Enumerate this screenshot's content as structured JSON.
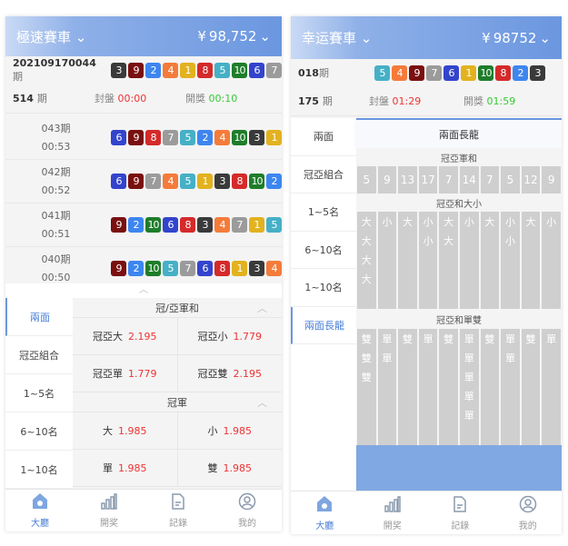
{
  "ball_colors": {
    "1": "#e2b21f",
    "2": "#3d86f0",
    "3": "#3a3a3a",
    "4": "#f57b3a",
    "5": "#45b0c6",
    "6": "#3344cc",
    "7": "#9b9b9b",
    "8": "#d42a2a",
    "9": "#7a1010",
    "10": "#1e7d2a"
  },
  "left": {
    "header": {
      "title": "極速賽車",
      "balance": "98,752"
    },
    "current": {
      "period": "202109170044",
      "period_suffix": "期",
      "balls": [
        3,
        9,
        2,
        4,
        1,
        8,
        5,
        10,
        6,
        7
      ]
    },
    "next": {
      "period": "514",
      "period_suffix": "期",
      "close_label": "封盤",
      "close_time": "00:00",
      "open_label": "開獎",
      "open_time": "00:10"
    },
    "history": [
      {
        "period": "043期",
        "time": "00:53",
        "balls": [
          6,
          9,
          8,
          7,
          5,
          2,
          4,
          10,
          3,
          1
        ]
      },
      {
        "period": "042期",
        "time": "00:52",
        "balls": [
          6,
          9,
          7,
          4,
          5,
          1,
          3,
          8,
          10,
          2
        ]
      },
      {
        "period": "041期",
        "time": "00:51",
        "balls": [
          9,
          2,
          10,
          6,
          8,
          3,
          4,
          7,
          1,
          5
        ]
      },
      {
        "period": "040期",
        "time": "00:50",
        "balls": [
          9,
          2,
          10,
          5,
          7,
          6,
          8,
          1,
          3,
          4
        ]
      }
    ],
    "sidebar": [
      "兩面",
      "冠亞組合",
      "1~5名",
      "6~10名",
      "1~10名"
    ],
    "sections": [
      {
        "title": "冠/亞軍和",
        "rows": [
          [
            {
              "name": "冠亞大",
              "odds": "2.195"
            },
            {
              "name": "冠亞小",
              "odds": "1.779"
            }
          ],
          [
            {
              "name": "冠亞單",
              "odds": "1.779"
            },
            {
              "name": "冠亞雙",
              "odds": "2.195"
            }
          ]
        ]
      },
      {
        "title": "冠軍",
        "rows": [
          [
            {
              "name": "大",
              "odds": "1.985"
            },
            {
              "name": "小",
              "odds": "1.985"
            }
          ],
          [
            {
              "name": "單",
              "odds": "1.985"
            },
            {
              "name": "雙",
              "odds": "1.985"
            }
          ]
        ]
      }
    ]
  },
  "right": {
    "header": {
      "title": "幸运賽車",
      "balance": "98752"
    },
    "current": {
      "period": "018",
      "period_suffix": "期",
      "balls": [
        5,
        4,
        9,
        7,
        6,
        1,
        10,
        8,
        2,
        3
      ]
    },
    "next": {
      "period": "175",
      "period_suffix": "期",
      "close_label": "封盤",
      "close_time": "01:29",
      "open_label": "開獎",
      "open_time": "01:59"
    },
    "sidebar": [
      "兩面",
      "冠亞組合",
      "1~5名",
      "6~10名",
      "1~10名",
      "兩面長龍"
    ],
    "tab_title": "兩面長龍",
    "sum_label": "冠亞軍和",
    "sums": [
      "5",
      "9",
      "13",
      "17",
      "7",
      "14",
      "7",
      "5",
      "12",
      "9"
    ],
    "bigsmall_label": "冠亞和大小",
    "bigsmall": [
      [
        "大",
        "大",
        "大",
        "大"
      ],
      [
        "小"
      ],
      [
        "大"
      ],
      [
        "小",
        "小"
      ],
      [
        "大",
        "大"
      ],
      [
        "小"
      ],
      [
        "大"
      ],
      [
        "小",
        "小"
      ],
      [
        "大"
      ],
      [
        "小"
      ]
    ],
    "oddeven_label": "冠亞和單雙",
    "oddeven": [
      [
        "雙",
        "雙",
        "雙"
      ],
      [
        "單",
        "單"
      ],
      [
        "雙"
      ],
      [
        "單"
      ],
      [
        "雙"
      ],
      [
        "單",
        "單",
        "單",
        "單",
        "單"
      ],
      [
        "雙"
      ],
      [
        "單",
        "單"
      ],
      [
        "雙"
      ],
      [
        "單"
      ]
    ]
  },
  "nav": [
    {
      "label": "大廳",
      "icon": "home-icon"
    },
    {
      "label": "開奖",
      "icon": "chart-bars-icon"
    },
    {
      "label": "記錄",
      "icon": "document-icon"
    },
    {
      "label": "我的",
      "icon": "user-icon"
    }
  ]
}
